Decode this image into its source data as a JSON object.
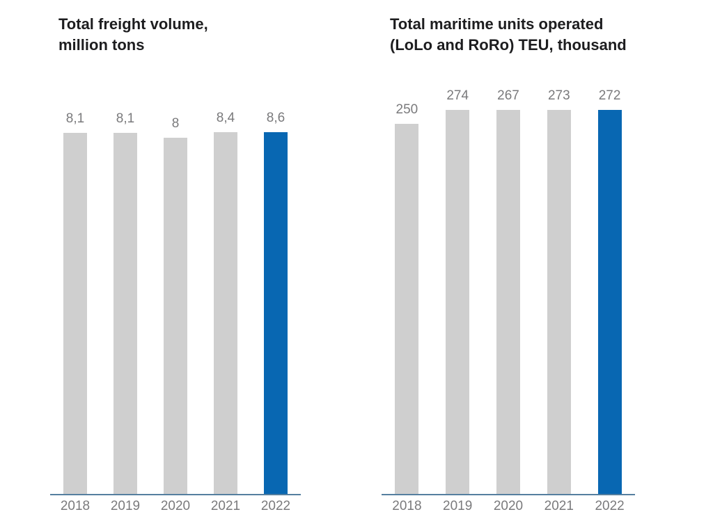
{
  "page": {
    "background_color": "#ffffff"
  },
  "colors": {
    "bar_default": "#cfcfcf",
    "bar_highlight": "#0867b2",
    "axis_line": "#557f9f",
    "label_gray": "#7a7a7c",
    "title_text": "#1d1d1f"
  },
  "chart_data": [
    {
      "type": "bar",
      "title": "Total freight volume,\nmillion tons",
      "categories": [
        "2018",
        "2019",
        "2020",
        "2021",
        "2022"
      ],
      "values": [
        8.1,
        8.1,
        8,
        8.4,
        8.6
      ],
      "value_labels": [
        "8,1",
        "8,1",
        "8",
        "8,4",
        "8,6"
      ],
      "xlabel": "",
      "ylabel": "",
      "ylim": [
        0,
        8.6
      ],
      "grid": false,
      "legend": "none",
      "highlight_index": 4,
      "highlight_category": "2022"
    },
    {
      "type": "bar",
      "title": "Total maritime units operated\n(LoLo and RoRo) TEU, thousand",
      "categories": [
        "2018",
        "2019",
        "2020",
        "2021",
        "2022"
      ],
      "values": [
        250,
        274,
        267,
        273,
        272
      ],
      "value_labels": [
        "250",
        "274",
        "267",
        "273",
        "272"
      ],
      "xlabel": "",
      "ylabel": "",
      "ylim": [
        0,
        274
      ],
      "grid": false,
      "legend": "none",
      "highlight_index": 4,
      "highlight_category": "2022"
    }
  ]
}
